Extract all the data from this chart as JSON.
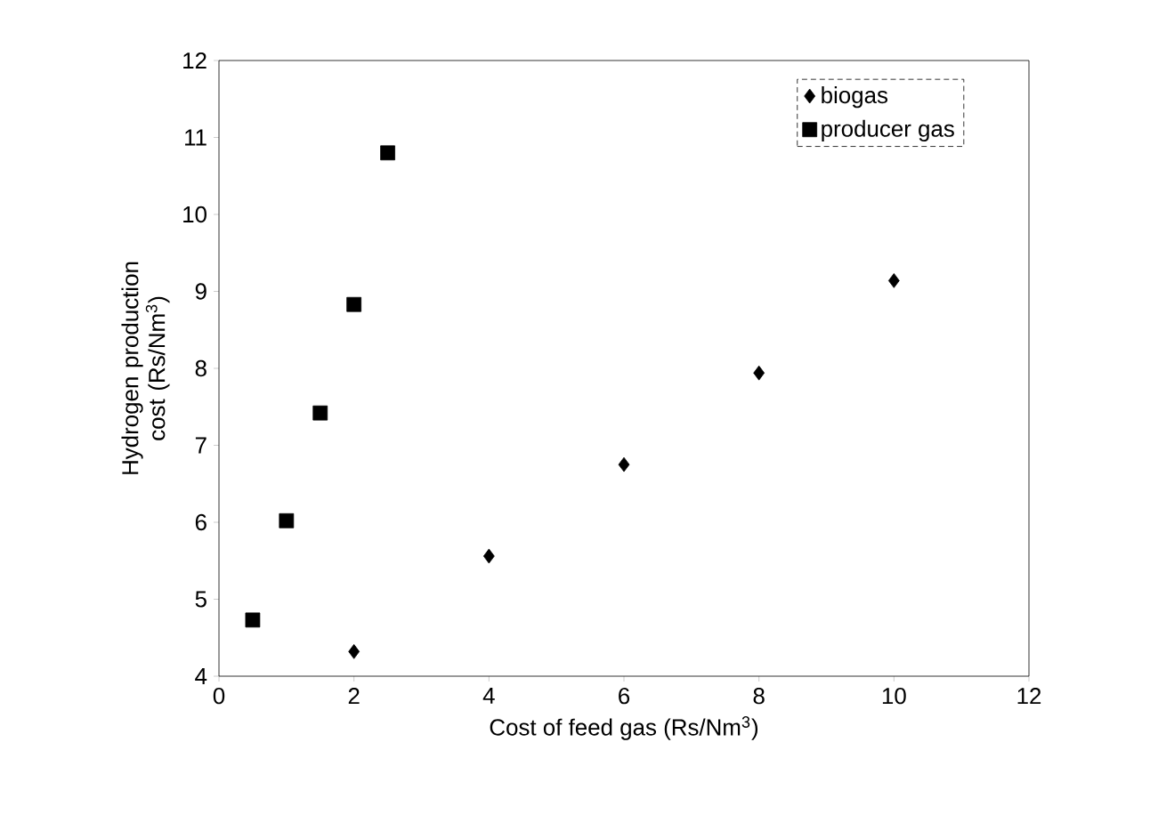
{
  "chart_data": {
    "type": "scatter",
    "xlabel": "Cost of feed gas (Rs/Nm$^{3}$)",
    "ylabel": "Hydrogen production cost (Rs/Nm$^{3}$)",
    "xlim": [
      0,
      12
    ],
    "ylim": [
      4,
      12
    ],
    "xticks": [
      0,
      2,
      4,
      6,
      8,
      10,
      12
    ],
    "yticks": [
      4,
      5,
      6,
      7,
      8,
      9,
      10,
      11,
      12
    ],
    "grid": false,
    "legend": "top right",
    "series": [
      {
        "name": "biogas",
        "color": "#000000",
        "marker": "diamond",
        "x": [
          2,
          4,
          6,
          8,
          10
        ],
        "values": [
          4.32,
          5.56,
          6.75,
          7.94,
          9.14
        ]
      },
      {
        "name": "producer gas",
        "color": "#000000",
        "marker": "square",
        "x": [
          0.5,
          1,
          1.5,
          2,
          2.5
        ],
        "values": [
          4.73,
          6.02,
          7.42,
          8.83,
          10.8
        ]
      }
    ]
  }
}
